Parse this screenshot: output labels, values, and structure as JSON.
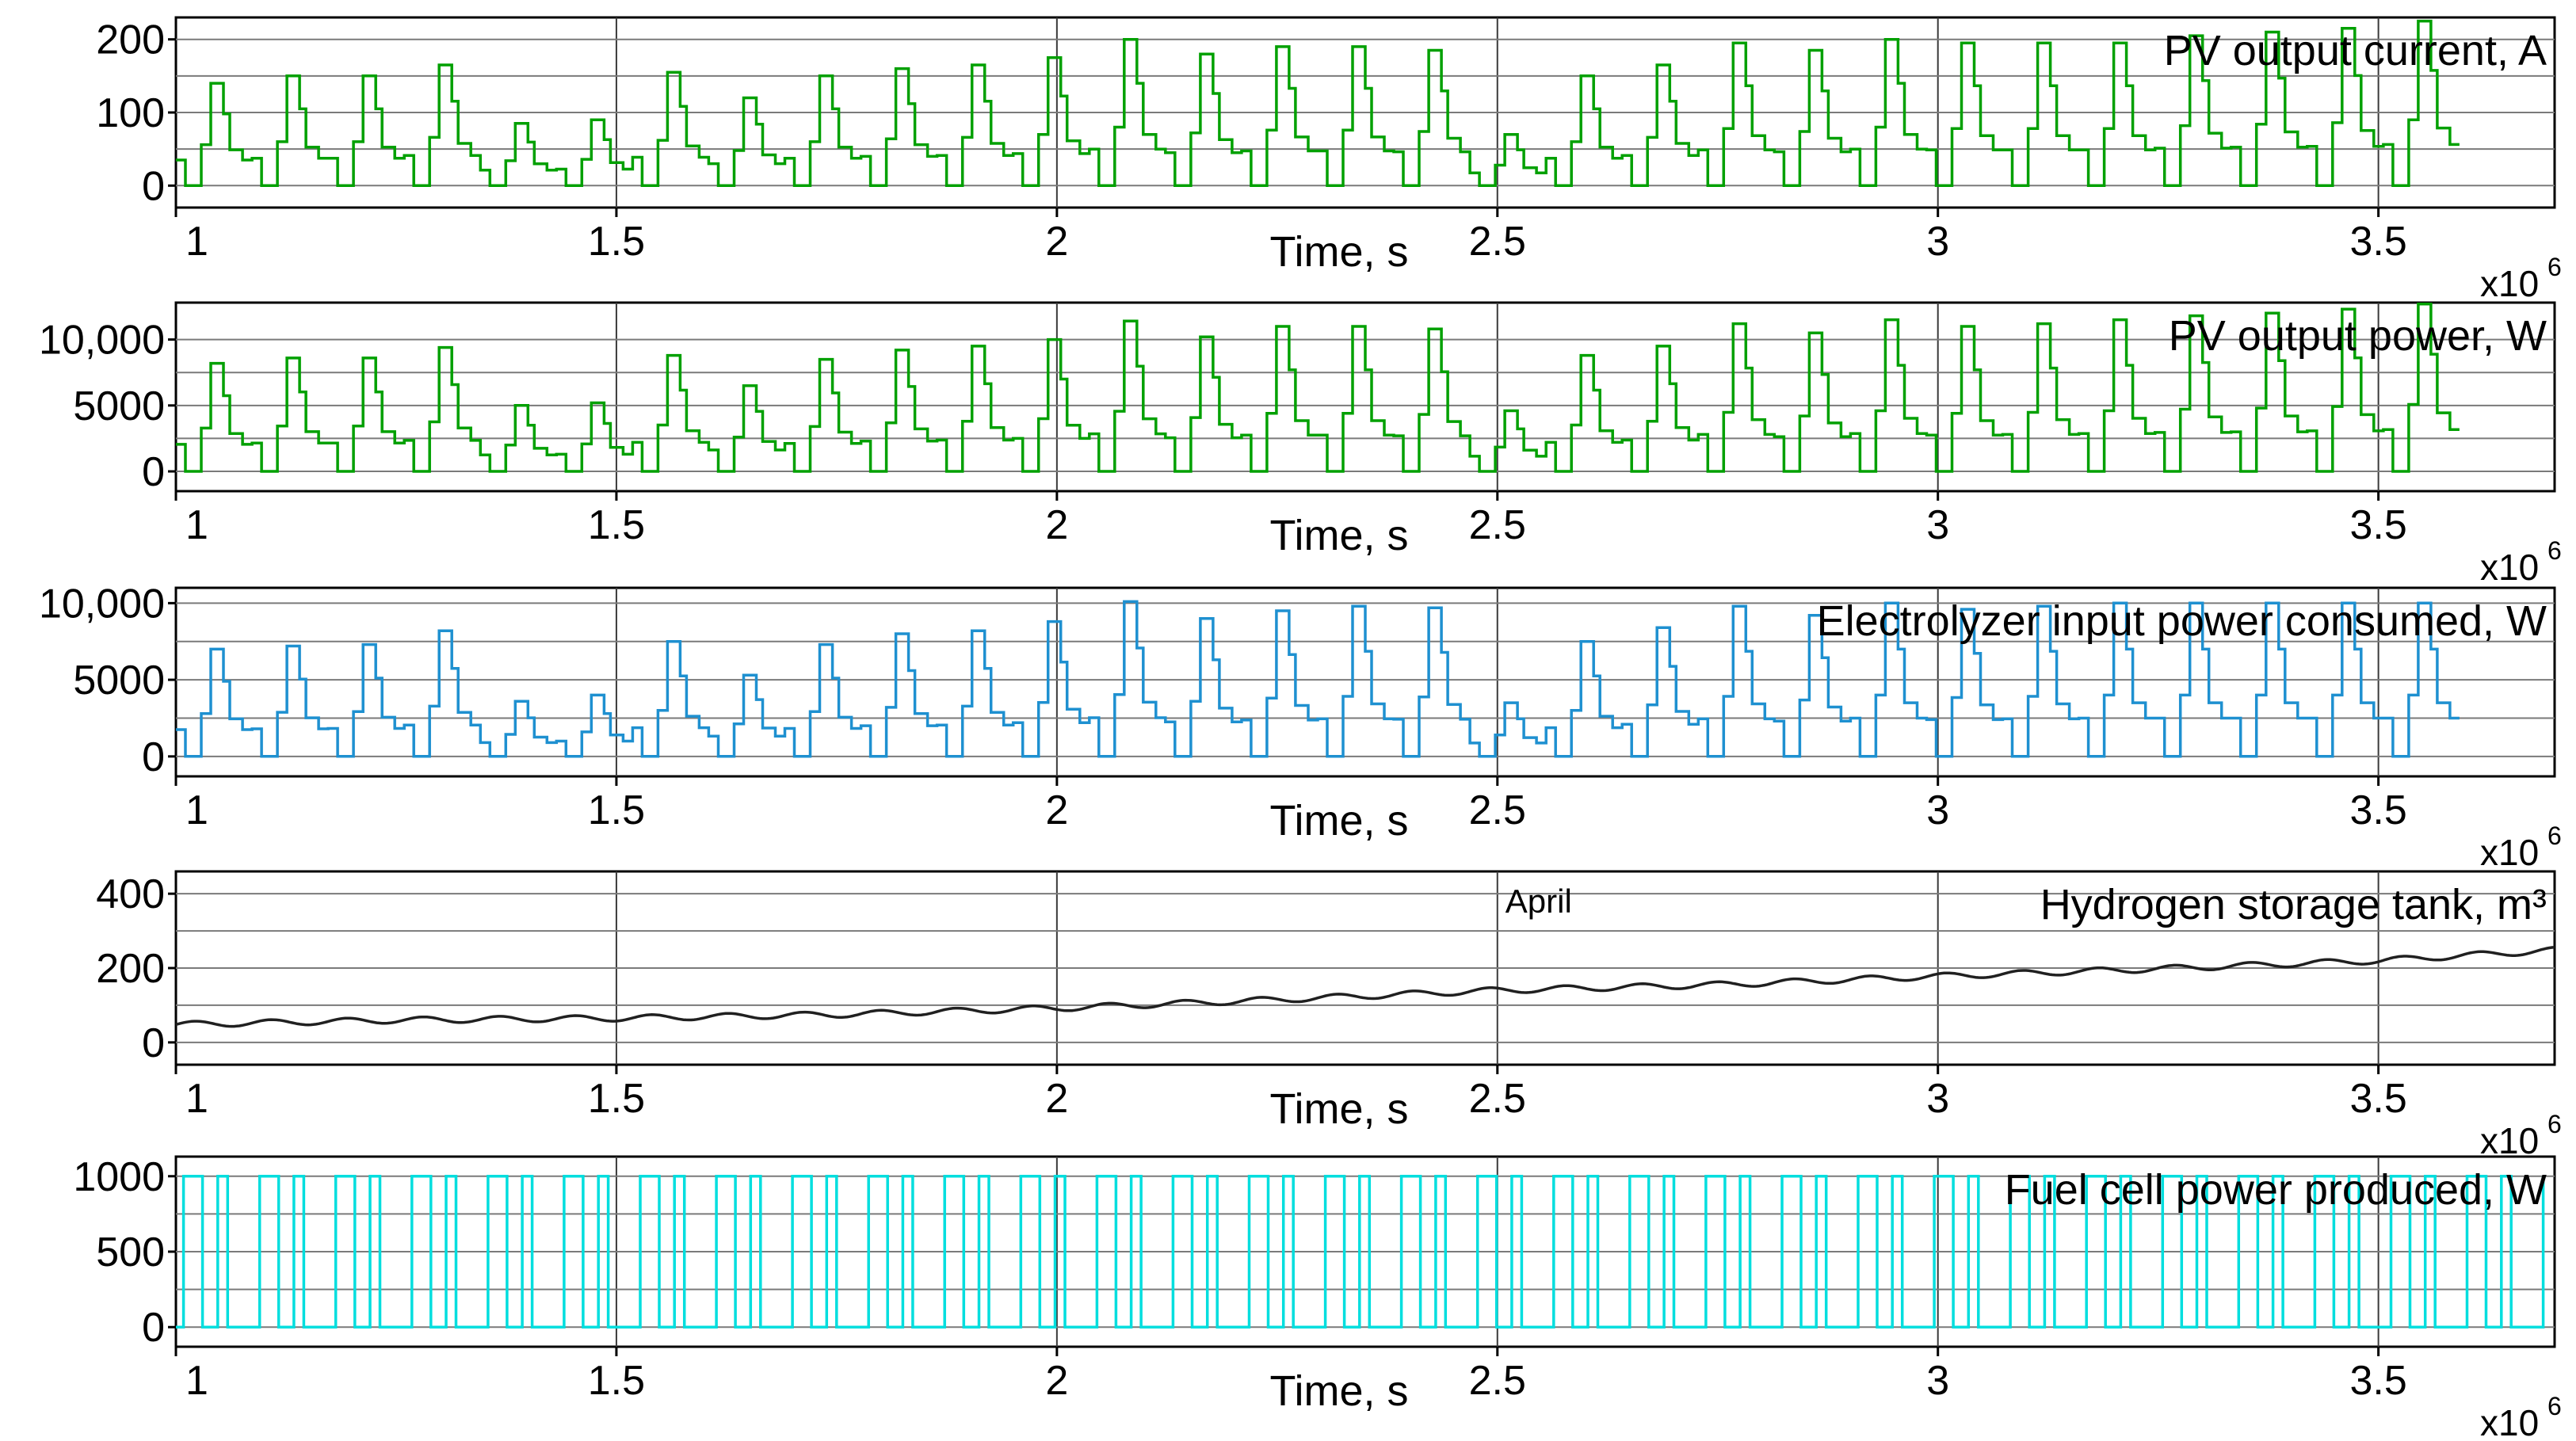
{
  "chart_data": [
    {
      "type": "line",
      "title": "PV output current, A",
      "xlabel": "Time, s",
      "x_exponent_label": "x10",
      "x_exponent_power": "6",
      "xlim": [
        1.0,
        3.7
      ],
      "ylim": [
        -30,
        230
      ],
      "x_ticks": [
        1,
        1.5,
        2,
        2.5,
        3,
        3.5
      ],
      "x_tick_labels": [
        "1",
        "1.5",
        "2",
        "2.5",
        "3",
        "3.5"
      ],
      "y_ticks": [
        0,
        100,
        200
      ],
      "y_tick_labels": [
        "0",
        "100",
        "200"
      ],
      "y_minor_gridlines": [
        50,
        150
      ],
      "grid": true,
      "series": [
        {
          "color": "#00a000",
          "step": true,
          "daily_peaks": [
            140,
            150,
            150,
            165,
            85,
            90,
            155,
            120,
            150,
            160,
            165,
            175,
            200,
            180,
            190,
            190,
            185,
            70,
            150,
            165,
            195,
            185,
            200,
            195,
            195,
            195,
            205,
            210,
            215,
            225
          ],
          "day_length": 0.0864,
          "x_start": 1.0,
          "first_day_offset": 0.0
        }
      ]
    },
    {
      "type": "line",
      "title": "PV output power, W",
      "xlabel": "Time, s",
      "x_exponent_label": "x10",
      "x_exponent_power": "6",
      "xlim": [
        1.0,
        3.7
      ],
      "ylim": [
        -1500,
        12800
      ],
      "x_ticks": [
        1,
        1.5,
        2,
        2.5,
        3,
        3.5
      ],
      "x_tick_labels": [
        "1",
        "1.5",
        "2",
        "2.5",
        "3",
        "3.5"
      ],
      "y_ticks": [
        0,
        5000,
        10000
      ],
      "y_tick_labels": [
        "0",
        "5000",
        "10,000"
      ],
      "y_minor_gridlines": [
        2500,
        7500
      ],
      "grid": true,
      "series": [
        {
          "color": "#00a000",
          "step": true,
          "daily_peaks": [
            8200,
            8600,
            8600,
            9400,
            5000,
            5200,
            8800,
            6500,
            8500,
            9200,
            9500,
            10000,
            11400,
            10200,
            11000,
            11000,
            10800,
            4600,
            8800,
            9500,
            11200,
            10500,
            11500,
            11000,
            11200,
            11500,
            11800,
            12000,
            12300,
            12700
          ],
          "day_length": 0.0864,
          "x_start": 1.0,
          "first_day_offset": 0.0
        }
      ]
    },
    {
      "type": "line",
      "title": "Electrolyzer input power consumed, W",
      "xlabel": "Time, s",
      "x_exponent_label": "x10",
      "x_exponent_power": "6",
      "xlim": [
        1.0,
        3.7
      ],
      "ylim": [
        -1300,
        11000
      ],
      "x_ticks": [
        1,
        1.5,
        2,
        2.5,
        3,
        3.5
      ],
      "x_tick_labels": [
        "1",
        "1.5",
        "2",
        "2.5",
        "3",
        "3.5"
      ],
      "y_ticks": [
        0,
        5000,
        10000
      ],
      "y_tick_labels": [
        "0",
        "5000",
        "10,000"
      ],
      "y_minor_gridlines": [
        2500,
        7500
      ],
      "grid": true,
      "series": [
        {
          "color": "#1e90d0",
          "step": true,
          "daily_peaks": [
            7000,
            7200,
            7300,
            8200,
            3600,
            4000,
            7500,
            5300,
            7300,
            8000,
            8200,
            8800,
            10100,
            9000,
            9500,
            9800,
            9700,
            3500,
            7500,
            8400,
            9800,
            9200,
            10000,
            9600,
            9800,
            10000,
            10000,
            10000,
            10000,
            10000
          ],
          "day_length": 0.0864,
          "x_start": 1.0,
          "first_day_offset": 0.0
        }
      ]
    },
    {
      "type": "line",
      "title": "Hydrogen storage tank, m³",
      "annotation": "April",
      "annotation_x": 2.5,
      "xlabel": "Time, s",
      "x_exponent_label": "x10",
      "x_exponent_power": "6",
      "xlim": [
        1.0,
        3.7
      ],
      "ylim": [
        -60,
        460
      ],
      "x_ticks": [
        1,
        1.5,
        2,
        2.5,
        3,
        3.5
      ],
      "x_tick_labels": [
        "1",
        "1.5",
        "2",
        "2.5",
        "3",
        "3.5"
      ],
      "y_ticks": [
        0,
        200,
        400
      ],
      "y_tick_labels": [
        "0",
        "200",
        "400"
      ],
      "y_minor_gridlines": [
        100,
        300
      ],
      "grid": true,
      "series": [
        {
          "color": "#202020",
          "step": false,
          "x": [
            1.0,
            1.25,
            1.5,
            1.75,
            2.0,
            2.25,
            2.5,
            2.75,
            3.0,
            3.25,
            3.5,
            3.7
          ],
          "y": [
            48,
            60,
            65,
            75,
            92,
            115,
            140,
            155,
            178,
            198,
            220,
            248
          ],
          "ripple_amplitude": 8,
          "ripple_period": 0.0864
        }
      ]
    },
    {
      "type": "line",
      "title": "Fuel cell power produced, W",
      "xlabel": "Time, s",
      "x_exponent_label": "x10",
      "x_exponent_power": "6",
      "xlim": [
        1.0,
        3.7
      ],
      "ylim": [
        -130,
        1130
      ],
      "x_ticks": [
        1,
        1.5,
        2,
        2.5,
        3,
        3.5
      ],
      "x_tick_labels": [
        "1",
        "1.5",
        "2",
        "2.5",
        "3",
        "3.5"
      ],
      "y_ticks": [
        0,
        500,
        1000
      ],
      "y_tick_labels": [
        "0",
        "500",
        "1000"
      ],
      "y_minor_gridlines": [
        250,
        750
      ],
      "grid": true,
      "series": [
        {
          "color": "#00dede",
          "step": true,
          "on_value": 1000,
          "off_value": 0,
          "day_length": 0.0864,
          "x_start": 1.0
        }
      ]
    }
  ]
}
